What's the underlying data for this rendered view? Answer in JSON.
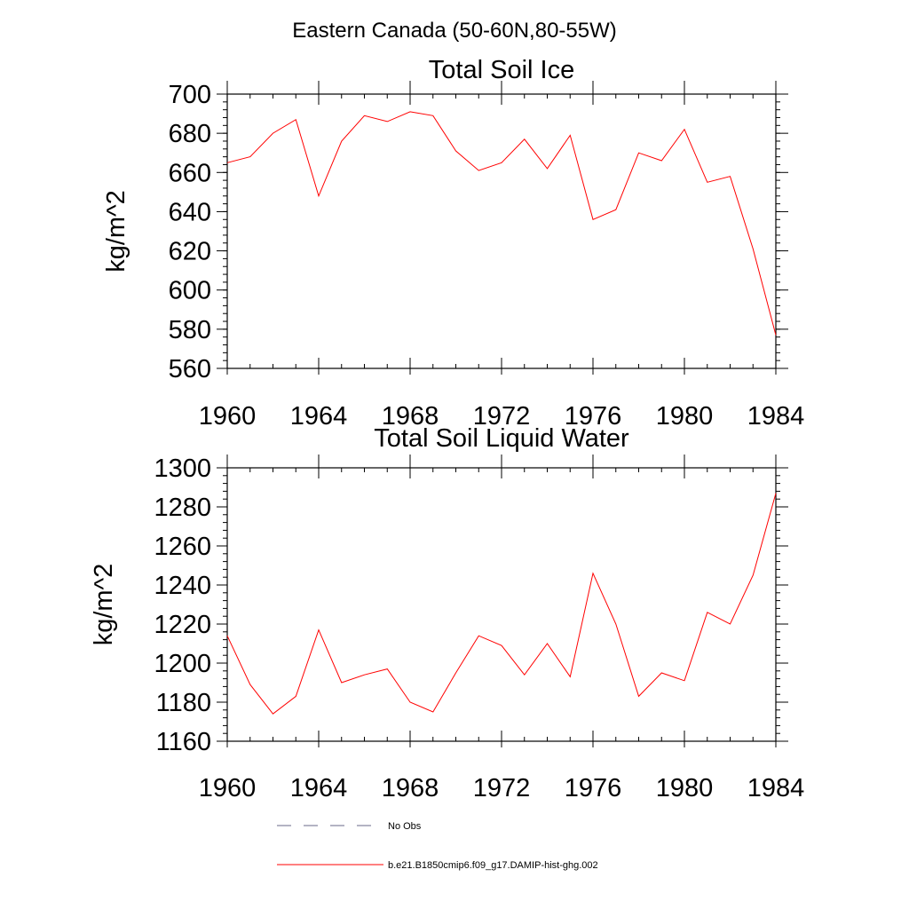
{
  "figure_title": "Eastern Canada (50-60N,80-55W)",
  "colors": {
    "model": "#ff0000",
    "obs": "#6a6a8a",
    "axis": "#000000"
  },
  "legend": {
    "obs_label": "No Obs",
    "model_label": "b.e21.B1850cmip6.f09_g17.DAMIP-hist-ghg.002"
  },
  "chart_data": [
    {
      "type": "line",
      "title": "Total Soil Ice",
      "ylabel": "kg/m^2",
      "xlim": [
        1960,
        1984
      ],
      "ylim": [
        560,
        700
      ],
      "x_ticks": [
        1960,
        1964,
        1968,
        1972,
        1976,
        1980,
        1984
      ],
      "y_ticks": [
        560,
        580,
        600,
        620,
        640,
        660,
        680,
        700
      ],
      "x": [
        1960,
        1961,
        1962,
        1963,
        1964,
        1965,
        1966,
        1967,
        1968,
        1969,
        1970,
        1971,
        1972,
        1973,
        1974,
        1975,
        1976,
        1977,
        1978,
        1979,
        1980,
        1981,
        1982,
        1983,
        1984
      ],
      "series": [
        {
          "name": "b.e21.B1850cmip6.f09_g17.DAMIP-hist-ghg.002",
          "values": [
            665,
            668,
            680,
            687,
            648,
            676,
            689,
            686,
            691,
            689,
            671,
            661,
            665,
            677,
            662,
            679,
            636,
            641,
            670,
            666,
            682,
            655,
            658,
            621,
            577
          ]
        }
      ]
    },
    {
      "type": "line",
      "title": "Total Soil Liquid Water",
      "ylabel": "kg/m^2",
      "xlim": [
        1960,
        1984
      ],
      "ylim": [
        1160,
        1300
      ],
      "x_ticks": [
        1960,
        1964,
        1968,
        1972,
        1976,
        1980,
        1984
      ],
      "y_ticks": [
        1160,
        1180,
        1200,
        1220,
        1240,
        1260,
        1280,
        1300
      ],
      "x": [
        1960,
        1961,
        1962,
        1963,
        1964,
        1965,
        1966,
        1967,
        1968,
        1969,
        1970,
        1971,
        1972,
        1973,
        1974,
        1975,
        1976,
        1977,
        1978,
        1979,
        1980,
        1981,
        1982,
        1983,
        1984
      ],
      "series": [
        {
          "name": "b.e21.B1850cmip6.f09_g17.DAMIP-hist-ghg.002",
          "values": [
            1214,
            1189,
            1174,
            1183,
            1217,
            1190,
            1194,
            1197,
            1180,
            1175,
            1195,
            1214,
            1209,
            1194,
            1210,
            1193,
            1246,
            1220,
            1183,
            1195,
            1191,
            1226,
            1220,
            1245,
            1287
          ]
        }
      ]
    }
  ]
}
